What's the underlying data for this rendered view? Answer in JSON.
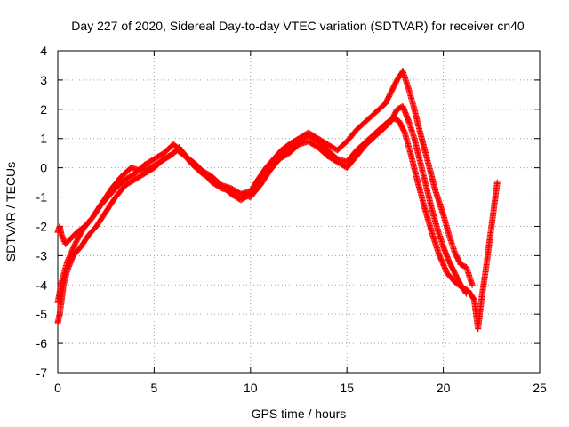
{
  "chart_data": {
    "type": "scatter",
    "title": "Day 227 of 2020, Sidereal Day-to-day VTEC variation (SDTVAR) for receiver cn40",
    "xlabel": "GPS time / hours",
    "ylabel": "SDTVAR / TECUs",
    "xlim": [
      0,
      25
    ],
    "ylim": [
      -7,
      4
    ],
    "x_ticks": [
      0,
      5,
      10,
      15,
      20,
      25
    ],
    "y_ticks": [
      -7,
      -6,
      -5,
      -4,
      -3,
      -2,
      -1,
      0,
      1,
      2,
      3,
      4
    ],
    "grid": true,
    "marker": "+",
    "color": "#ff0000",
    "series": [
      {
        "x": [
          0.0,
          0.1,
          0.2,
          0.3,
          0.5,
          0.8,
          1.2,
          1.6,
          2.0,
          2.5,
          3.0,
          3.5,
          4.0,
          4.5,
          5.0,
          5.5,
          6.0,
          6.3,
          6.6,
          7.0,
          7.5,
          8.0,
          8.5,
          9.0,
          9.5,
          10.0,
          10.3,
          10.6,
          11.0,
          11.5,
          12.0,
          12.5,
          13.0,
          13.5,
          14.0,
          14.5,
          15.0,
          15.5,
          16.0,
          16.5,
          17.0,
          17.4,
          17.7,
          18.0,
          18.3,
          18.6,
          19.0,
          19.4,
          19.8,
          20.2,
          20.6,
          21.0,
          21.3,
          21.6,
          21.8,
          22.0,
          22.2,
          22.4,
          22.6,
          22.8
        ],
        "y": [
          -5.3,
          -5.0,
          -4.5,
          -4.0,
          -3.5,
          -3.0,
          -2.7,
          -2.3,
          -2.0,
          -1.5,
          -1.0,
          -0.6,
          -0.4,
          -0.2,
          0.0,
          0.3,
          0.5,
          0.7,
          0.4,
          0.2,
          -0.1,
          -0.3,
          -0.6,
          -0.9,
          -1.1,
          -0.9,
          -0.5,
          -0.2,
          0.1,
          0.4,
          0.6,
          0.9,
          1.1,
          0.9,
          0.6,
          0.3,
          0.2,
          0.6,
          0.9,
          1.2,
          1.5,
          1.7,
          1.6,
          1.2,
          0.5,
          -0.3,
          -1.3,
          -2.2,
          -3.0,
          -3.6,
          -3.9,
          -4.1,
          -4.2,
          -4.5,
          -5.5,
          -4.4,
          -3.5,
          -2.5,
          -1.5,
          -0.5
        ]
      },
      {
        "x": [
          0.0,
          0.1,
          0.2,
          0.4,
          0.7,
          1.0,
          1.4,
          1.8,
          2.2,
          2.6,
          3.0,
          3.5,
          4.0,
          4.5,
          5.0,
          5.5,
          6.0,
          6.4,
          6.8,
          7.2,
          7.6,
          8.0,
          8.5,
          9.0,
          9.5,
          10.0,
          10.4,
          10.8,
          11.2,
          11.6,
          12.0,
          12.5,
          13.0,
          13.5,
          14.0,
          14.5,
          15.0,
          15.5,
          16.0,
          16.5,
          17.0,
          17.3,
          17.6,
          17.9,
          18.2,
          18.5,
          18.8,
          19.2,
          19.6,
          20.0,
          20.3,
          20.6,
          20.9,
          21.2,
          21.5
        ],
        "y": [
          -2.2,
          -2.0,
          -2.3,
          -2.6,
          -2.4,
          -2.2,
          -2.0,
          -1.7,
          -1.3,
          -1.0,
          -0.7,
          -0.4,
          -0.2,
          0.1,
          0.3,
          0.5,
          0.8,
          0.6,
          0.3,
          0.1,
          -0.2,
          -0.5,
          -0.7,
          -0.8,
          -0.9,
          -0.8,
          -0.4,
          0.0,
          0.3,
          0.6,
          0.8,
          1.0,
          1.2,
          1.0,
          0.8,
          0.6,
          0.9,
          1.3,
          1.6,
          1.9,
          2.2,
          2.6,
          3.0,
          3.3,
          2.7,
          2.0,
          1.2,
          0.2,
          -0.8,
          -1.6,
          -2.3,
          -2.9,
          -3.3,
          -3.4,
          -4.0
        ]
      },
      {
        "x": [
          0.0,
          0.2,
          0.5,
          0.9,
          1.3,
          1.8,
          2.3,
          2.8,
          3.3,
          3.8,
          4.3,
          4.8,
          5.3,
          5.8,
          6.2,
          6.6,
          7.0,
          7.5,
          8.0,
          8.5,
          9.0,
          9.5,
          10.0,
          10.5,
          11.0,
          11.5,
          12.0,
          12.5,
          13.0,
          13.5,
          14.0,
          14.5,
          15.0,
          15.5,
          16.0,
          16.5,
          17.0,
          17.3,
          17.6,
          17.9,
          18.2,
          18.5,
          18.8,
          19.1,
          19.4,
          19.7,
          20.0,
          20.3,
          20.6,
          20.9,
          21.2
        ],
        "y": [
          -4.6,
          -3.9,
          -3.2,
          -2.6,
          -2.1,
          -1.7,
          -1.2,
          -0.7,
          -0.3,
          0.0,
          -0.1,
          0.0,
          0.2,
          0.4,
          0.6,
          0.4,
          0.1,
          -0.2,
          -0.4,
          -0.6,
          -0.7,
          -0.9,
          -1.0,
          -0.6,
          -0.1,
          0.3,
          0.5,
          0.8,
          0.9,
          0.7,
          0.4,
          0.2,
          0.0,
          0.4,
          0.8,
          1.1,
          1.4,
          1.6,
          2.0,
          2.1,
          1.6,
          1.0,
          0.2,
          -0.6,
          -1.4,
          -2.1,
          -2.7,
          -3.2,
          -3.6,
          -4.0,
          -4.3
        ]
      }
    ]
  }
}
